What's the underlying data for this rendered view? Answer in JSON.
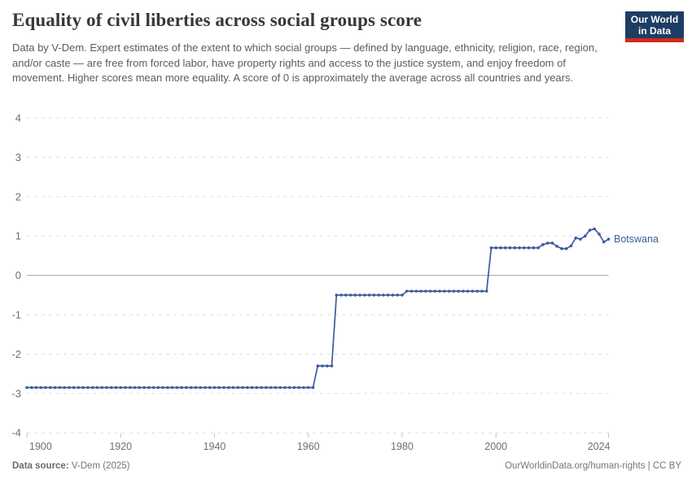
{
  "header": {
    "title": "Equality of civil liberties across social groups score",
    "subtitle": "Data by V-Dem. Expert estimates of the extent to which social groups — defined by language, ethnicity, religion, race, region, and/or caste — are free from forced labor, have property rights and access to the justice system, and enjoy freedom of movement. Higher scores mean more equality. A score of 0 is approximately the average across all countries and years.",
    "logo": {
      "line1": "Our World",
      "line2": "in Data"
    }
  },
  "chart_data": {
    "type": "line",
    "entity": "Botswana",
    "title": "Equality of civil liberties across social groups score",
    "xlabel": "",
    "ylabel": "",
    "x_range": [
      1900,
      2024
    ],
    "ylim": [
      -4,
      4
    ],
    "y_ticks": [
      4,
      3,
      2,
      1,
      0,
      -1,
      -2,
      -3,
      -4
    ],
    "x_ticks": [
      1900,
      1920,
      1940,
      1960,
      1980,
      2000,
      2024
    ],
    "grid": true,
    "legend_position": "end-of-line-label",
    "marker_every_year": true,
    "series": [
      {
        "name": "Botswana",
        "interpolation": "annual points, linear between listed breakpoints (flat plateaus with 1-year step transitions)",
        "points": [
          [
            1900,
            -2.85
          ],
          [
            1961,
            -2.85
          ],
          [
            1962,
            -2.3
          ],
          [
            1965,
            -2.3
          ],
          [
            1966,
            -0.5
          ],
          [
            1980,
            -0.5
          ],
          [
            1981,
            -0.4
          ],
          [
            1998,
            -0.4
          ],
          [
            1999,
            0.7
          ],
          [
            2009,
            0.7
          ],
          [
            2010,
            0.78
          ],
          [
            2011,
            0.82
          ],
          [
            2012,
            0.82
          ],
          [
            2013,
            0.74
          ],
          [
            2014,
            0.68
          ],
          [
            2015,
            0.68
          ],
          [
            2016,
            0.75
          ],
          [
            2017,
            0.95
          ],
          [
            2018,
            0.92
          ],
          [
            2019,
            1.0
          ],
          [
            2020,
            1.15
          ],
          [
            2021,
            1.18
          ],
          [
            2022,
            1.05
          ],
          [
            2023,
            0.85
          ],
          [
            2024,
            0.92
          ]
        ]
      }
    ],
    "colors": {
      "line": "#3d5c9e",
      "grid": "#dddddd",
      "zero_line": "#a3a3a3",
      "tick_label": "#6e6e6e",
      "axis_tick": "#c3c3c3"
    }
  },
  "footer": {
    "source_label": "Data source:",
    "source_value": "V-Dem (2025)",
    "link": "OurWorldinData.org/human-rights | CC BY"
  },
  "brand_colors": {
    "logo_navy": "#1d3d63",
    "logo_red": "#d12b1e"
  }
}
